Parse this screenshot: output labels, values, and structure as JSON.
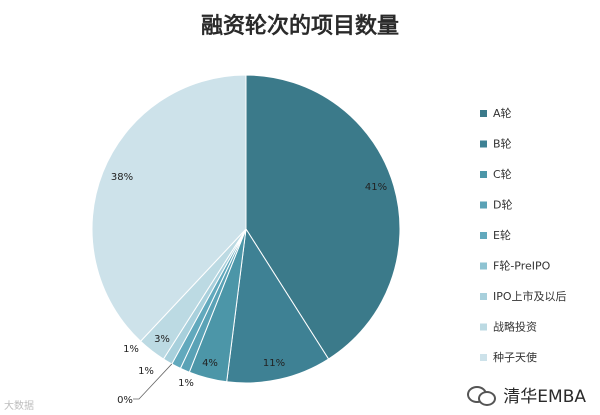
{
  "chart_data": {
    "type": "pie",
    "title": "融资轮次的项目数量",
    "categories": [
      "A轮",
      "B轮",
      "C轮",
      "D轮",
      "E轮",
      "F轮-PreIPO",
      "IPO上市及以后",
      "战略投资",
      "种子天使"
    ],
    "values": [
      41,
      11,
      4,
      1,
      1,
      0,
      1,
      3,
      38
    ],
    "labels": [
      "41%",
      "11%",
      "4%",
      "1%",
      "1%",
      "0%",
      "1%",
      "3%",
      "38%"
    ],
    "colors": [
      "#3b7a8a",
      "#3e8194",
      "#4c96a8",
      "#5aa2b6",
      "#62a9bd",
      "#8ec3d2",
      "#a8d0dc",
      "#bcdae3",
      "#cde2ea"
    ],
    "legend_position": "right"
  },
  "watermark": {
    "left": "大数据",
    "right": "清华EMBA",
    "right_icon": "wechat-icon"
  }
}
